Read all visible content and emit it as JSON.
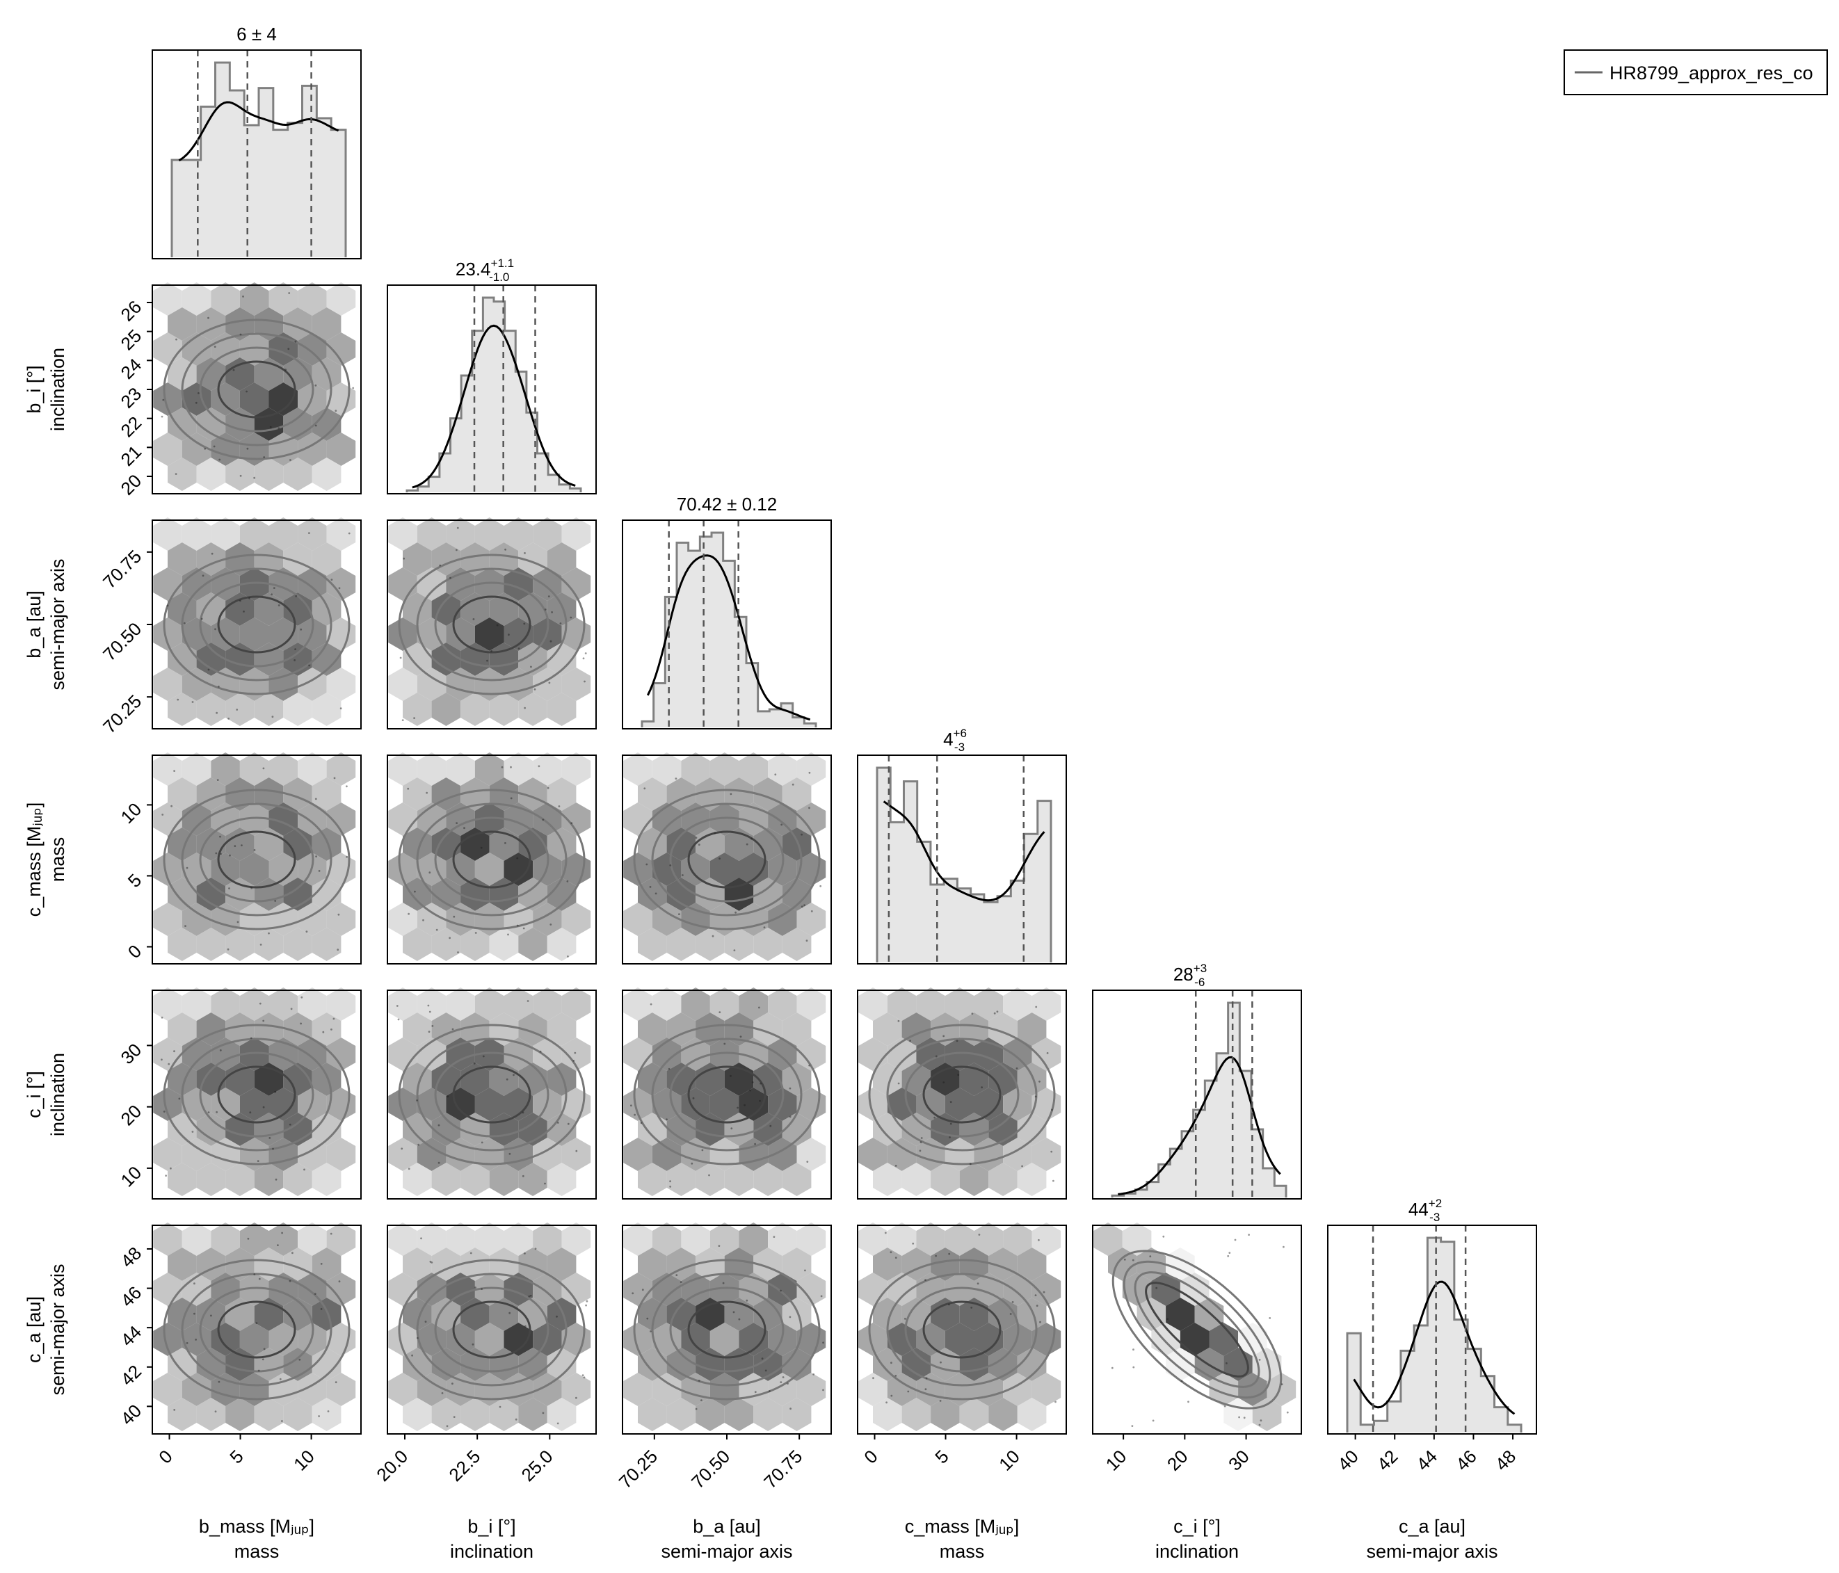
{
  "legend": {
    "label": "HR8799_approx_res_co",
    "placement": "top-right"
  },
  "chart_data": {
    "type": "corner",
    "title": "",
    "grid": false,
    "parameters": [
      {
        "key": "b_mass",
        "label": "b_mass [Mⱼᵤₚ]",
        "sublabel": "mass",
        "range": [
          -1.2,
          13.5
        ],
        "ticks": [
          0,
          5,
          10
        ],
        "ticklabels": [
          "0",
          "5",
          "10"
        ],
        "summary": {
          "median": "6",
          "plus": "",
          "minus": "",
          "pm": "4"
        },
        "quantiles": [
          2,
          5.5,
          10
        ],
        "distribution": "uniform"
      },
      {
        "key": "b_i",
        "label": "b_i [°]",
        "sublabel": "inclination",
        "range": [
          19.4,
          26.6
        ],
        "ticks": [
          20,
          21,
          22,
          23,
          24,
          25,
          26
        ],
        "ticklabels": [
          "20",
          "21",
          "22",
          "23",
          "24",
          "25",
          "26"
        ],
        "xticks": [
          20,
          22.5,
          25
        ],
        "xticklabels": [
          "20.0",
          "22.5",
          "25.0"
        ],
        "summary": {
          "median": "23.4",
          "plus": "+1.1",
          "minus": "-1.0",
          "pm": ""
        },
        "quantiles": [
          22.4,
          23.4,
          24.5
        ],
        "distribution": "gauss"
      },
      {
        "key": "b_a",
        "label": "b_a [au]",
        "sublabel": "semi-major axis",
        "range": [
          70.14,
          70.86
        ],
        "ticks": [
          70.25,
          70.5,
          70.75
        ],
        "ticklabels": [
          "70.25",
          "70.50",
          "70.75"
        ],
        "summary": {
          "median": "70.42",
          "plus": "",
          "minus": "",
          "pm": "0.12"
        },
        "quantiles": [
          70.3,
          70.42,
          70.54
        ],
        "distribution": "gauss"
      },
      {
        "key": "c_mass",
        "label": "c_mass [Mⱼᵤₚ]",
        "sublabel": "mass",
        "range": [
          -1.2,
          13.5
        ],
        "ticks": [
          0,
          5,
          10
        ],
        "ticklabels": [
          "0",
          "5",
          "10"
        ],
        "summary": {
          "median": "4",
          "plus": "+6",
          "minus": "-3",
          "pm": ""
        },
        "quantiles": [
          1,
          4.4,
          10.5
        ],
        "distribution": "skew-low"
      },
      {
        "key": "c_i",
        "label": "c_i [°]",
        "sublabel": "inclination",
        "range": [
          5,
          39
        ],
        "ticks": [
          10,
          20,
          30
        ],
        "ticklabels": [
          "10",
          "20",
          "30"
        ],
        "summary": {
          "median": "28",
          "plus": "+3",
          "minus": "-6",
          "pm": ""
        },
        "quantiles": [
          21.8,
          27.8,
          31
        ],
        "distribution": "skew-high"
      },
      {
        "key": "c_a",
        "label": "c_a [au]",
        "sublabel": "semi-major axis",
        "range": [
          38.6,
          49.2
        ],
        "ticks": [
          40,
          42,
          44,
          46,
          48
        ],
        "ticklabels": [
          "40",
          "42",
          "44",
          "46",
          "48"
        ],
        "summary": {
          "median": "44",
          "plus": "+2",
          "minus": "-3",
          "pm": ""
        },
        "quantiles": [
          40.9,
          44.1,
          45.6
        ],
        "distribution": "gauss+edge"
      }
    ],
    "marginal_histograms": [
      [
        4.2,
        4.2,
        6.5,
        8.4,
        7.2,
        5.7,
        7.3,
        5.5,
        5.8,
        7.4,
        6.0,
        5.5
      ],
      [
        0.1,
        0.3,
        0.8,
        2.0,
        3.8,
        6.0,
        8.3,
        10.0,
        9.8,
        8.3,
        6.2,
        4.1,
        2.0,
        0.9,
        0.4,
        0.2
      ],
      [
        0.3,
        2.2,
        6.5,
        9.2,
        8.8,
        9.5,
        9.7,
        8.3,
        5.5,
        3.2,
        0.8,
        0.9,
        1.2,
        0.5,
        0.2
      ],
      [
        10.0,
        7.2,
        9.3,
        6.2,
        4.0,
        4.3,
        3.8,
        3.5,
        3.1,
        3.4,
        4.2,
        6.6,
        8.3
      ],
      [
        0.1,
        0.2,
        0.4,
        0.8,
        1.7,
        2.5,
        3.4,
        4.5,
        6.0,
        7.4,
        10.0,
        6.5,
        3.5,
        1.5,
        0.6
      ],
      [
        5.1,
        0.4,
        0.6,
        1.6,
        4.2,
        5.5,
        10.0,
        9.8,
        5.8,
        4.3,
        2.9,
        1.3,
        0.4
      ]
    ],
    "hexbin_levels": 7,
    "contour_levels": 4,
    "marker_color": "#1a1a1a",
    "histogram_color": "#808080",
    "fill_color": "#e6e6e6",
    "kde_color": "#000000"
  }
}
